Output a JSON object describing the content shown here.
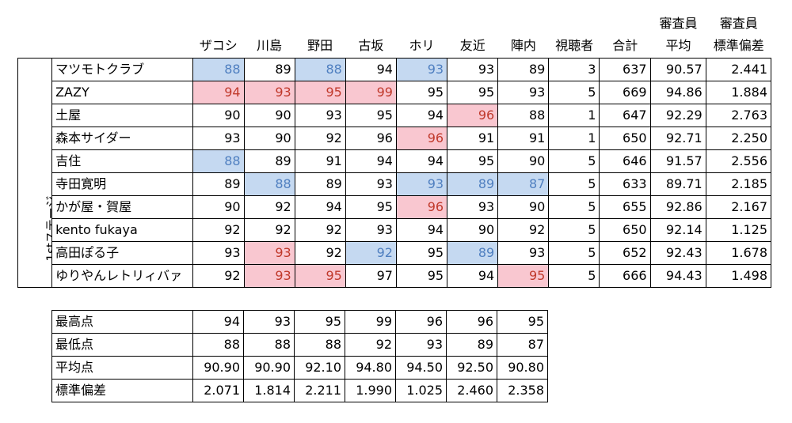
{
  "header": {
    "judges": [
      "ザコシ",
      "川島",
      "野田",
      "古坂",
      "ホリ",
      "友近",
      "陣内"
    ],
    "viewers": "視聴者",
    "total": "合計",
    "avg_top": "審査員",
    "avg_bottom": "平均",
    "sd_top": "審査員",
    "sd_bottom": "標準偏差"
  },
  "stage_label": "1stステージ",
  "rows": [
    {
      "name": "マツモトクラブ",
      "scores": [
        "88",
        "89",
        "88",
        "94",
        "93",
        "93",
        "89"
      ],
      "marks": [
        "lo",
        "",
        "lo",
        "",
        "lo",
        "",
        ""
      ],
      "viewers": "3",
      "total": "637",
      "avg": "90.57",
      "sd": "2.441"
    },
    {
      "name": "ZAZY",
      "scores": [
        "94",
        "93",
        "95",
        "99",
        "95",
        "95",
        "93"
      ],
      "marks": [
        "hi",
        "hi",
        "hi",
        "hi",
        "",
        "",
        ""
      ],
      "viewers": "5",
      "total": "669",
      "avg": "94.86",
      "sd": "1.884"
    },
    {
      "name": "土屋",
      "scores": [
        "90",
        "90",
        "93",
        "95",
        "94",
        "96",
        "88"
      ],
      "marks": [
        "",
        "",
        "",
        "",
        "",
        "hi",
        ""
      ],
      "viewers": "1",
      "total": "647",
      "avg": "92.29",
      "sd": "2.763"
    },
    {
      "name": "森本サイダー",
      "scores": [
        "93",
        "90",
        "92",
        "96",
        "96",
        "91",
        "91"
      ],
      "marks": [
        "",
        "",
        "",
        "",
        "hi",
        "",
        ""
      ],
      "viewers": "1",
      "total": "650",
      "avg": "92.71",
      "sd": "2.250"
    },
    {
      "name": "吉住",
      "scores": [
        "88",
        "89",
        "91",
        "94",
        "94",
        "95",
        "90"
      ],
      "marks": [
        "lo",
        "",
        "",
        "",
        "",
        "",
        ""
      ],
      "viewers": "5",
      "total": "646",
      "avg": "91.57",
      "sd": "2.556"
    },
    {
      "name": "寺田寛明",
      "scores": [
        "89",
        "88",
        "89",
        "93",
        "93",
        "89",
        "87"
      ],
      "marks": [
        "",
        "lo",
        "",
        "",
        "lo",
        "lo",
        "lo"
      ],
      "viewers": "5",
      "total": "633",
      "avg": "89.71",
      "sd": "2.185"
    },
    {
      "name": "かが屋・賀屋",
      "scores": [
        "90",
        "92",
        "94",
        "95",
        "96",
        "93",
        "90"
      ],
      "marks": [
        "",
        "",
        "",
        "",
        "hi",
        "",
        ""
      ],
      "viewers": "5",
      "total": "655",
      "avg": "92.86",
      "sd": "2.167"
    },
    {
      "name": "kento fukaya",
      "scores": [
        "92",
        "92",
        "92",
        "93",
        "94",
        "90",
        "92"
      ],
      "marks": [
        "",
        "",
        "",
        "",
        "",
        "",
        ""
      ],
      "viewers": "5",
      "total": "650",
      "avg": "92.14",
      "sd": "1.125"
    },
    {
      "name": "高田ぽる子",
      "scores": [
        "93",
        "93",
        "92",
        "92",
        "95",
        "89",
        "93"
      ],
      "marks": [
        "",
        "hi",
        "",
        "lo",
        "",
        "lo",
        ""
      ],
      "viewers": "5",
      "total": "652",
      "avg": "92.43",
      "sd": "1.678"
    },
    {
      "name": "ゆりやんレトリィバァ",
      "scores": [
        "92",
        "93",
        "95",
        "97",
        "95",
        "94",
        "95"
      ],
      "marks": [
        "",
        "hi",
        "hi",
        "",
        "",
        "",
        "hi"
      ],
      "viewers": "5",
      "total": "666",
      "avg": "94.43",
      "sd": "1.498"
    }
  ],
  "summary": [
    {
      "label": "最高点",
      "values": [
        "94",
        "93",
        "95",
        "99",
        "96",
        "96",
        "95"
      ]
    },
    {
      "label": "最低点",
      "values": [
        "88",
        "88",
        "88",
        "92",
        "93",
        "89",
        "87"
      ]
    },
    {
      "label": "平均点",
      "values": [
        "90.90",
        "90.90",
        "92.10",
        "94.80",
        "94.50",
        "92.50",
        "90.80"
      ]
    },
    {
      "label": "標準偏差",
      "values": [
        "2.071",
        "1.814",
        "2.211",
        "1.990",
        "1.025",
        "2.460",
        "2.358"
      ]
    }
  ]
}
